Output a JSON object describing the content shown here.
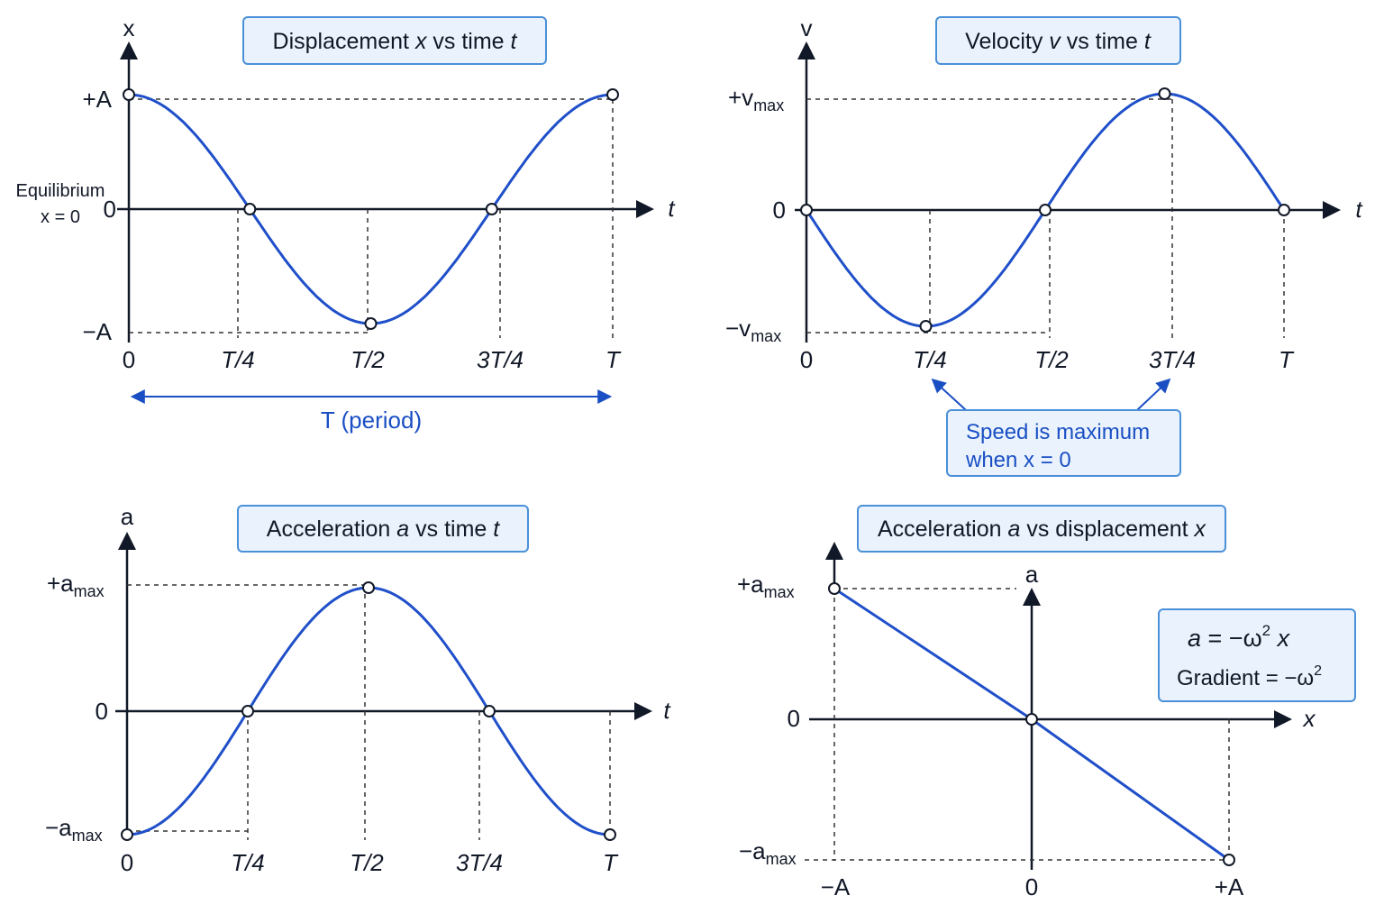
{
  "colors": {
    "curve": "#1f4fc9",
    "axis": "#111827",
    "dashed": "#333333",
    "box_fill": "#eaf3fd",
    "box_stroke": "#4a90d9",
    "annotation": "#1a4fc4"
  },
  "chart_data": [
    {
      "id": "displacement",
      "type": "line",
      "title": {
        "pre": "Displacement ",
        "v1": "x",
        "mid": " vs time ",
        "v2": "t"
      },
      "xlabel": "t",
      "ylabel": "x",
      "x_ticks": [
        "0",
        "T/4",
        "T/2",
        "3T/4",
        "T"
      ],
      "y_ticks": {
        "top": "+A",
        "mid": "0",
        "bottom": "−A"
      },
      "equilibrium_label": [
        "Equilibrium",
        "x = 0"
      ],
      "function": "cos",
      "marked_points": [
        [
          0,
          1
        ],
        [
          0.25,
          0
        ],
        [
          0.5,
          -1
        ],
        [
          0.75,
          0
        ],
        [
          1,
          1
        ]
      ],
      "period_label": "T (period)"
    },
    {
      "id": "velocity",
      "type": "line",
      "title": {
        "pre": "Velocity ",
        "v1": "v",
        "mid": " vs time ",
        "v2": "t"
      },
      "xlabel": "t",
      "ylabel": "v",
      "x_ticks": [
        "0",
        "T/4",
        "T/2",
        "3T/4",
        "T"
      ],
      "y_ticks": {
        "top": "+v",
        "top_sub": "max",
        "mid": "0",
        "bottom": "−v",
        "bottom_sub": "max"
      },
      "function": "-sin",
      "marked_points": [
        [
          0,
          0
        ],
        [
          0.25,
          -1
        ],
        [
          0.5,
          0
        ],
        [
          0.75,
          1
        ],
        [
          1,
          0
        ]
      ],
      "annotation": [
        "Speed is maximum",
        "when x = 0"
      ]
    },
    {
      "id": "acceleration_time",
      "type": "line",
      "title": {
        "pre": "Acceleration ",
        "v1": "a",
        "mid": " vs time ",
        "v2": "t"
      },
      "xlabel": "t",
      "ylabel": "a",
      "x_ticks": [
        "0",
        "T/4",
        "T/2",
        "3T/4",
        "T"
      ],
      "y_ticks": {
        "top": "+a",
        "top_sub": "max",
        "mid": "0",
        "bottom": "−a",
        "bottom_sub": "max"
      },
      "function": "-cos",
      "marked_points": [
        [
          0,
          -1
        ],
        [
          0.25,
          0
        ],
        [
          0.5,
          1
        ],
        [
          0.75,
          0
        ],
        [
          1,
          -1
        ]
      ]
    },
    {
      "id": "acceleration_displacement",
      "type": "line",
      "title": {
        "pre": "Acceleration ",
        "v1": "a",
        "mid": " vs displacement ",
        "v2": "x"
      },
      "xlabel": "x",
      "ylabel": "a",
      "x_ticks": [
        "−A",
        "0",
        "+A"
      ],
      "y_ticks": {
        "top": "+a",
        "top_sub": "max",
        "mid": "0",
        "bottom": "−a",
        "bottom_sub": "max"
      },
      "x": [
        -1,
        0,
        1
      ],
      "y": [
        1,
        0,
        -1
      ],
      "formula": {
        "a": "a",
        "eq": " = −ω",
        "sup": "2",
        "x": " x"
      },
      "gradient": {
        "text": "Gradient = −ω",
        "sup": "2"
      }
    }
  ]
}
